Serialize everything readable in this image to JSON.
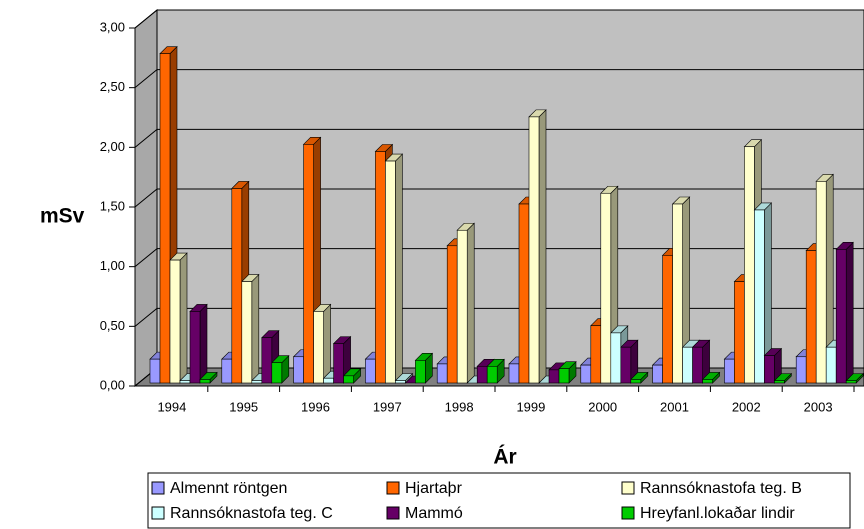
{
  "chart_data": {
    "type": "bar3d",
    "y_label": "mSv",
    "x_label": "Ár",
    "categories": [
      "1994",
      "1995",
      "1996",
      "1997",
      "1998",
      "1999",
      "2000",
      "2001",
      "2002",
      "2003"
    ],
    "ylim": [
      0,
      3
    ],
    "yticks": [
      {
        "value": 0,
        "label": "0,00"
      },
      {
        "value": 0.5,
        "label": "0,50"
      },
      {
        "value": 1,
        "label": "1,00"
      },
      {
        "value": 1.5,
        "label": "1,50"
      },
      {
        "value": 2,
        "label": "2,00"
      },
      {
        "value": 2.5,
        "label": "2,50"
      },
      {
        "value": 3,
        "label": "3,00"
      }
    ],
    "grid": true,
    "series": [
      {
        "name": "Almennt röntgen",
        "color": "#9999ff",
        "values": [
          0.2,
          0.2,
          0.22,
          0.2,
          0.16,
          0.16,
          0.15,
          0.15,
          0.2,
          0.22
        ]
      },
      {
        "name": "Hjartaþr",
        "color": "#ff6600",
        "values": [
          2.76,
          1.63,
          2.0,
          1.94,
          1.15,
          1.5,
          0.48,
          1.07,
          0.85,
          1.11
        ]
      },
      {
        "name": "Rannsóknastofa teg. B",
        "color": "#ffffcc",
        "values": [
          1.03,
          0.85,
          0.6,
          1.86,
          1.28,
          2.23,
          1.59,
          1.5,
          1.98,
          1.69
        ]
      },
      {
        "name": "Rannsóknastofa teg. C",
        "color": "#ccffff",
        "values": [
          0.02,
          0.02,
          0.04,
          0.02,
          0.0,
          0.0,
          0.42,
          0.3,
          1.45,
          0.3
        ]
      },
      {
        "name": "Mammó",
        "color": "#660066",
        "values": [
          0.6,
          0.38,
          0.33,
          0.0,
          0.14,
          0.11,
          0.3,
          0.3,
          0.23,
          1.12
        ]
      },
      {
        "name": "Hreyfanl.lokaðar lindir",
        "color": "#00cc00",
        "values": [
          0.03,
          0.17,
          0.06,
          0.19,
          0.14,
          0.12,
          0.03,
          0.03,
          0.02,
          0.02
        ]
      }
    ]
  }
}
